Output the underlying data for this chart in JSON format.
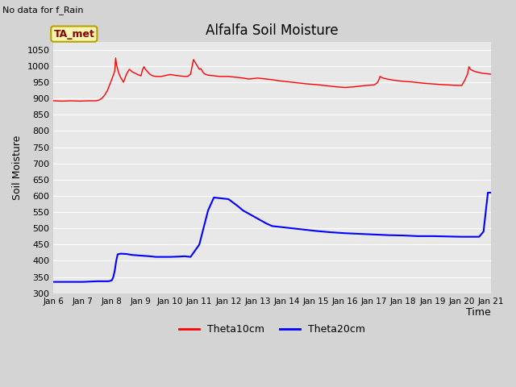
{
  "title": "Alfalfa Soil Moisture",
  "note": "No data for f_Rain",
  "ylabel": "Soil Moisture",
  "xlabel": "Time",
  "ylim": [
    300,
    1075
  ],
  "yticks": [
    300,
    350,
    400,
    450,
    500,
    550,
    600,
    650,
    700,
    750,
    800,
    850,
    900,
    950,
    1000,
    1050
  ],
  "fig_bg": "#d4d4d4",
  "plot_bg": "#e8e8e8",
  "legend_label_red": "Theta10cm",
  "legend_label_blue": "Theta20cm",
  "ta_met_label": "TA_met",
  "xtick_labels": [
    "Jan 6",
    "Jan 7",
    "Jan 8",
    "Jan 9",
    "Jan 10",
    "Jan 11",
    "Jan 12",
    "Jan 13",
    "Jan 14",
    "Jan 15",
    "Jan 16",
    "Jan 17",
    "Jan 18",
    "Jan 19",
    "Jan 20",
    "Jan 21"
  ],
  "red_x": [
    0,
    0.3,
    0.6,
    0.9,
    1.2,
    1.45,
    1.55,
    1.65,
    1.75,
    1.85,
    1.9,
    1.95,
    2.0,
    2.05,
    2.1,
    2.13,
    2.16,
    2.2,
    2.25,
    2.3,
    2.35,
    2.4,
    2.5,
    2.6,
    2.7,
    2.8,
    2.9,
    3.0,
    3.05,
    3.1,
    3.15,
    3.2,
    3.25,
    3.3,
    3.4,
    3.5,
    3.7,
    4.0,
    4.2,
    4.4,
    4.5,
    4.6,
    4.7,
    4.8,
    4.9,
    5.0,
    5.05,
    5.1,
    5.15,
    5.2,
    5.3,
    5.5,
    5.7,
    6.0,
    6.3,
    6.5,
    6.7,
    7.0,
    7.3,
    7.5,
    7.7,
    8.0,
    8.3,
    8.5,
    8.7,
    9.0,
    9.3,
    9.5,
    9.7,
    10.0,
    10.3,
    10.5,
    10.7,
    11.0,
    11.05,
    11.1,
    11.13,
    11.17,
    11.2,
    11.3,
    11.5,
    11.7,
    12.0,
    12.3,
    12.5,
    12.7,
    13.0,
    13.3,
    13.5,
    13.7,
    14.0,
    14.1,
    14.2,
    14.25,
    14.3,
    14.4,
    14.5,
    14.7,
    15.0
  ],
  "red_y": [
    893,
    892,
    893,
    892,
    893,
    893,
    895,
    900,
    910,
    925,
    937,
    948,
    960,
    972,
    985,
    1025,
    1005,
    990,
    975,
    965,
    958,
    950,
    975,
    990,
    982,
    978,
    973,
    970,
    988,
    998,
    990,
    985,
    980,
    975,
    970,
    968,
    968,
    974,
    971,
    969,
    968,
    968,
    975,
    1020,
    1005,
    990,
    992,
    985,
    978,
    975,
    972,
    970,
    968,
    968,
    965,
    963,
    960,
    963,
    960,
    958,
    955,
    952,
    949,
    947,
    945,
    943,
    940,
    938,
    936,
    934,
    936,
    938,
    940,
    942,
    945,
    948,
    952,
    960,
    968,
    963,
    959,
    956,
    953,
    951,
    949,
    947,
    945,
    943,
    942,
    941,
    940,
    955,
    975,
    998,
    990,
    985,
    982,
    978,
    975
  ],
  "blue_x": [
    0,
    0.5,
    1.0,
    1.5,
    1.75,
    1.9,
    2.0,
    2.05,
    2.1,
    2.15,
    2.2,
    2.3,
    2.5,
    2.7,
    3.0,
    3.3,
    3.5,
    3.7,
    4.0,
    4.3,
    4.5,
    4.7,
    5.0,
    5.3,
    5.5,
    6.0,
    6.3,
    6.5,
    7.0,
    7.3,
    7.5,
    8.0,
    8.5,
    9.0,
    9.5,
    10.0,
    10.5,
    11.0,
    11.5,
    12.0,
    12.5,
    13.0,
    13.5,
    14.0,
    14.3,
    14.6,
    14.75,
    14.9,
    15.0
  ],
  "blue_y": [
    335,
    335,
    335,
    337,
    337,
    337,
    340,
    350,
    370,
    400,
    420,
    422,
    421,
    418,
    416,
    414,
    412,
    412,
    412,
    413,
    414,
    412,
    450,
    555,
    595,
    590,
    570,
    555,
    530,
    515,
    507,
    502,
    497,
    492,
    488,
    485,
    483,
    481,
    479,
    478,
    476,
    476,
    475,
    474,
    474,
    474,
    490,
    610,
    610
  ]
}
